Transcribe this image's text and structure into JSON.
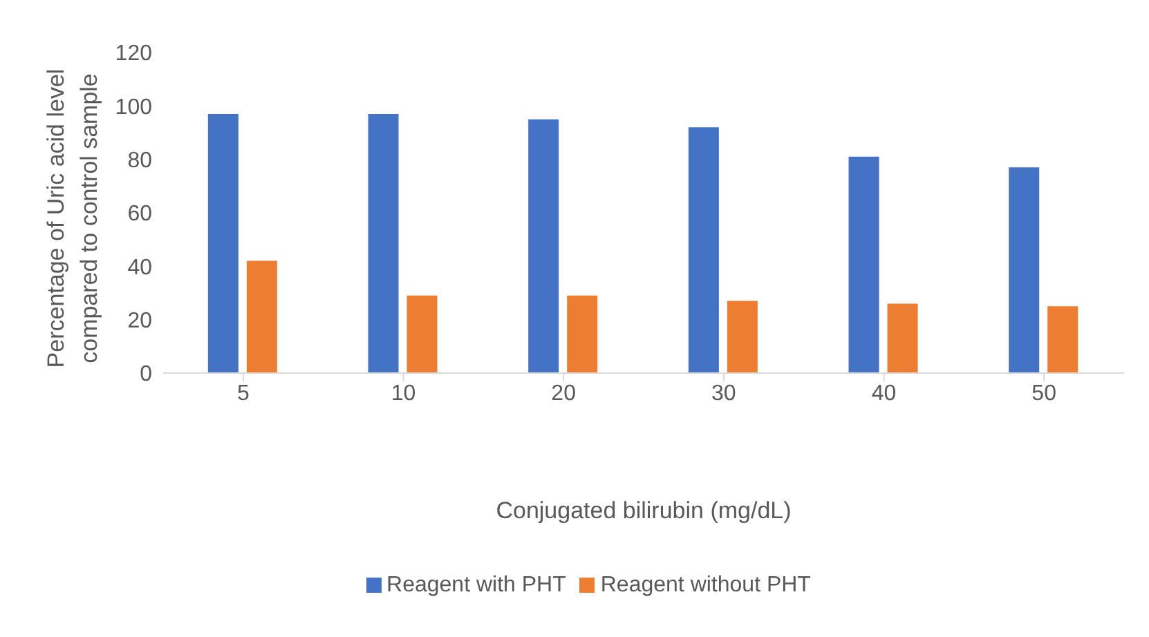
{
  "chart_data": {
    "type": "bar",
    "categories": [
      "5",
      "10",
      "20",
      "30",
      "40",
      "50"
    ],
    "xlabel": "Conjugated bilirubin (mg/dL)",
    "ylabel": "Percentage of Uric acid level compared to control sample",
    "series": [
      {
        "name": "Reagent with PHT",
        "color": "#4472c4",
        "values": [
          97,
          97,
          95,
          92,
          81,
          77
        ]
      },
      {
        "name": "Reagent without PHT",
        "color": "#ed7d31",
        "values": [
          42,
          29,
          29,
          27,
          26,
          25
        ]
      }
    ],
    "ylim": [
      0,
      120
    ],
    "yticks": [
      0,
      20,
      40,
      60,
      80,
      100,
      120
    ],
    "grid": false,
    "legend": "bottom"
  }
}
